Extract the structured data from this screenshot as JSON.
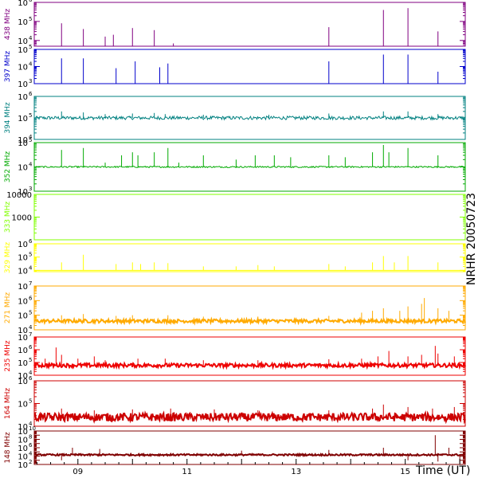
{
  "chart_data": {
    "type": "line",
    "title": "",
    "station_label": "NRHR 20050723",
    "xlabel": "Time (UT)",
    "xlim": [
      8.2,
      16.1
    ],
    "x_ticks": [
      9,
      10,
      11,
      12,
      13,
      14,
      15,
      16
    ],
    "x_tick_labels": [
      {
        "value": 9,
        "text": "09"
      },
      {
        "value": 11,
        "text": "11"
      },
      {
        "value": 13,
        "text": "13"
      },
      {
        "value": 15,
        "text": "15"
      }
    ],
    "panels": [
      {
        "name": "438 MHz",
        "color": "#800080",
        "log": true,
        "ylim": [
          5000,
          1000000
        ],
        "tick_labels": [
          {
            "value": 10000,
            "base": "10",
            "exp": "4"
          },
          {
            "value": 100000,
            "base": "10",
            "exp": "5"
          },
          {
            "value": 1000000,
            "base": "10",
            "exp": "6"
          }
        ],
        "baseline": 5000,
        "noise": 0.0,
        "spikes": [
          [
            8.7,
            80000
          ],
          [
            9.1,
            40000
          ],
          [
            9.5,
            16000
          ],
          [
            9.65,
            20000
          ],
          [
            10.0,
            45000
          ],
          [
            10.4,
            35000
          ],
          [
            10.75,
            7000
          ],
          [
            13.6,
            50000
          ],
          [
            14.6,
            400000
          ],
          [
            15.05,
            500000
          ],
          [
            15.6,
            30000
          ]
        ]
      },
      {
        "name": "397 MHz",
        "color": "#0000cc",
        "log": true,
        "ylim": [
          1000,
          100000
        ],
        "tick_labels": [
          {
            "value": 1000,
            "base": "10",
            "exp": "3"
          },
          {
            "value": 10000,
            "base": "10",
            "exp": "4"
          },
          {
            "value": 100000,
            "base": "10",
            "exp": "5"
          }
        ],
        "baseline": 1000,
        "noise": 0.0,
        "spikes": [
          [
            8.7,
            30000
          ],
          [
            9.1,
            30000
          ],
          [
            9.7,
            8000
          ],
          [
            10.05,
            20000
          ],
          [
            10.5,
            9000
          ],
          [
            10.65,
            15000
          ],
          [
            13.6,
            20000
          ],
          [
            14.6,
            50000
          ],
          [
            15.05,
            50000
          ],
          [
            15.6,
            5000
          ]
        ]
      },
      {
        "name": "394 MHz",
        "color": "#008080",
        "log": true,
        "ylim": [
          10000,
          1000000
        ],
        "tick_labels": [
          {
            "value": 10000,
            "base": "10",
            "exp": "4"
          },
          {
            "value": 100000,
            "base": "10",
            "exp": "5"
          },
          {
            "value": 1000000,
            "base": "10",
            "exp": "6"
          }
        ],
        "baseline": 100000,
        "noise": 0.08,
        "spikes": [
          [
            8.7,
            200000
          ],
          [
            9.1,
            180000
          ],
          [
            9.5,
            150000
          ],
          [
            10.0,
            160000
          ],
          [
            10.4,
            170000
          ],
          [
            10.6,
            150000
          ],
          [
            11.3,
            140000
          ],
          [
            12.5,
            140000
          ],
          [
            13.6,
            160000
          ],
          [
            14.6,
            200000
          ],
          [
            15.05,
            200000
          ],
          [
            15.6,
            150000
          ]
        ]
      },
      {
        "name": "352 MHz",
        "color": "#00aa00",
        "log": true,
        "ylim": [
          1000,
          100000
        ],
        "tick_labels": [
          {
            "value": 1000,
            "base": "10",
            "exp": "3"
          },
          {
            "value": 10000,
            "base": "10",
            "exp": "4"
          },
          {
            "value": 100000,
            "base": "10",
            "exp": "5"
          }
        ],
        "baseline": 10000,
        "noise": 0.03,
        "spikes": [
          [
            8.7,
            50000
          ],
          [
            9.1,
            60000
          ],
          [
            9.5,
            15000
          ],
          [
            9.8,
            30000
          ],
          [
            10.0,
            40000
          ],
          [
            10.1,
            30000
          ],
          [
            10.4,
            40000
          ],
          [
            10.65,
            60000
          ],
          [
            10.85,
            15000
          ],
          [
            11.3,
            30000
          ],
          [
            11.9,
            20000
          ],
          [
            12.25,
            30000
          ],
          [
            12.6,
            30000
          ],
          [
            12.9,
            25000
          ],
          [
            13.6,
            30000
          ],
          [
            13.9,
            25000
          ],
          [
            14.4,
            40000
          ],
          [
            14.6,
            80000
          ],
          [
            14.7,
            40000
          ],
          [
            15.05,
            60000
          ],
          [
            15.6,
            30000
          ]
        ]
      },
      {
        "name": "333 MHz",
        "color": "#80ff00",
        "log": true,
        "ylim": [
          100,
          10000
        ],
        "tick_labels": [
          {
            "value": 1000,
            "base": "1000",
            "exp": ""
          },
          {
            "value": 10000,
            "base": "10000",
            "exp": ""
          }
        ],
        "baseline": 10000,
        "noise": 0.0,
        "spikes": []
      },
      {
        "name": "329 MHz",
        "color": "#ffff00",
        "log": true,
        "ylim": [
          8000,
          1000000
        ],
        "tick_labels": [
          {
            "value": 10000,
            "base": "10",
            "exp": "4"
          },
          {
            "value": 100000,
            "base": "10",
            "exp": "5"
          },
          {
            "value": 1000000,
            "base": "10",
            "exp": "6"
          }
        ],
        "baseline": 10000,
        "noise": 0.0,
        "spikes": [
          [
            8.7,
            40000
          ],
          [
            9.1,
            150000
          ],
          [
            9.7,
            30000
          ],
          [
            10.0,
            40000
          ],
          [
            10.15,
            30000
          ],
          [
            10.4,
            40000
          ],
          [
            10.65,
            35000
          ],
          [
            11.3,
            20000
          ],
          [
            11.9,
            20000
          ],
          [
            12.3,
            25000
          ],
          [
            12.6,
            20000
          ],
          [
            13.6,
            30000
          ],
          [
            13.9,
            20000
          ],
          [
            14.4,
            40000
          ],
          [
            14.6,
            120000
          ],
          [
            14.8,
            40000
          ],
          [
            15.05,
            120000
          ],
          [
            15.6,
            40000
          ]
        ]
      },
      {
        "name": "271 MHz",
        "color": "#ffaa00",
        "log": true,
        "ylim": [
          10000,
          10000000
        ],
        "tick_labels": [
          {
            "value": 10000,
            "base": "10",
            "exp": "4"
          },
          {
            "value": 100000,
            "base": "10",
            "exp": "5"
          },
          {
            "value": 1000000,
            "base": "10",
            "exp": "6"
          },
          {
            "value": 10000000,
            "base": "10",
            "exp": "7"
          }
        ],
        "baseline": 40000,
        "noise": 0.12,
        "spikes": [
          [
            8.7,
            100000
          ],
          [
            9.1,
            120000
          ],
          [
            9.7,
            90000
          ],
          [
            10.0,
            100000
          ],
          [
            10.65,
            100000
          ],
          [
            11.3,
            80000
          ],
          [
            12.3,
            80000
          ],
          [
            13.6,
            90000
          ],
          [
            14.2,
            150000
          ],
          [
            14.4,
            200000
          ],
          [
            14.6,
            300000
          ],
          [
            14.9,
            200000
          ],
          [
            15.05,
            400000
          ],
          [
            15.3,
            600000
          ],
          [
            15.35,
            1500000
          ],
          [
            15.6,
            300000
          ],
          [
            15.8,
            200000
          ]
        ]
      },
      {
        "name": "235 MHz",
        "color": "#ee0000",
        "log": true,
        "ylim": [
          10000,
          10000000
        ],
        "tick_labels": [
          {
            "value": 10000,
            "base": "10",
            "exp": "4"
          },
          {
            "value": 100000,
            "base": "10",
            "exp": "5"
          },
          {
            "value": 1000000,
            "base": "10",
            "exp": "6"
          },
          {
            "value": 10000000,
            "base": "10",
            "exp": "7"
          }
        ],
        "baseline": 60000,
        "noise": 0.15,
        "spikes": [
          [
            8.4,
            200000
          ],
          [
            8.6,
            1500000
          ],
          [
            8.7,
            400000
          ],
          [
            9.0,
            200000
          ],
          [
            9.3,
            300000
          ],
          [
            9.5,
            150000
          ],
          [
            10.1,
            200000
          ],
          [
            10.6,
            200000
          ],
          [
            11.3,
            150000
          ],
          [
            12.3,
            150000
          ],
          [
            13.6,
            180000
          ],
          [
            14.2,
            200000
          ],
          [
            14.5,
            300000
          ],
          [
            14.7,
            800000
          ],
          [
            15.05,
            300000
          ],
          [
            15.3,
            400000
          ],
          [
            15.55,
            2000000
          ],
          [
            15.6,
            500000
          ],
          [
            15.9,
            300000
          ]
        ]
      },
      {
        "name": "164 MHz",
        "color": "#cc0000",
        "log": true,
        "ylim": [
          10000,
          1000000
        ],
        "tick_labels": [
          {
            "value": 10000,
            "base": "10",
            "exp": "4"
          },
          {
            "value": 100000,
            "base": "10",
            "exp": "5"
          },
          {
            "value": 1000000,
            "base": "10",
            "exp": "6"
          }
        ],
        "baseline": 25000,
        "noise": 0.18,
        "spikes": [
          [
            8.7,
            60000
          ],
          [
            9.3,
            50000
          ],
          [
            10.0,
            55000
          ],
          [
            10.7,
            60000
          ],
          [
            11.5,
            55000
          ],
          [
            12.3,
            50000
          ],
          [
            13.6,
            50000
          ],
          [
            14.4,
            60000
          ],
          [
            14.6,
            90000
          ],
          [
            15.05,
            70000
          ],
          [
            15.5,
            60000
          ],
          [
            15.9,
            70000
          ]
        ]
      },
      {
        "name": "148 MHz",
        "color": "#800000",
        "log": true,
        "ylim": [
          100,
          10000000000
        ],
        "tick_labels": [
          {
            "value": 100,
            "base": "10",
            "exp": "2"
          },
          {
            "value": 10000,
            "base": "10",
            "exp": "4"
          },
          {
            "value": 1000000,
            "base": "10",
            "exp": "6"
          },
          {
            "value": 100000000,
            "base": "10",
            "exp": "8"
          },
          {
            "value": 10000000000,
            "base": "10",
            "exp": "10"
          }
        ],
        "baseline": 20000,
        "noise": 0.2,
        "spikes": [
          [
            8.7,
            1000
          ],
          [
            8.9,
            1000000
          ],
          [
            9.4,
            500000
          ],
          [
            12.0,
            200000
          ],
          [
            13.6,
            300000
          ],
          [
            14.6,
            1000000
          ],
          [
            15.05,
            1000
          ],
          [
            15.55,
            1000000000
          ],
          [
            15.6,
            500
          ],
          [
            15.8,
            1000000
          ],
          [
            16.0,
            200
          ]
        ]
      }
    ]
  }
}
